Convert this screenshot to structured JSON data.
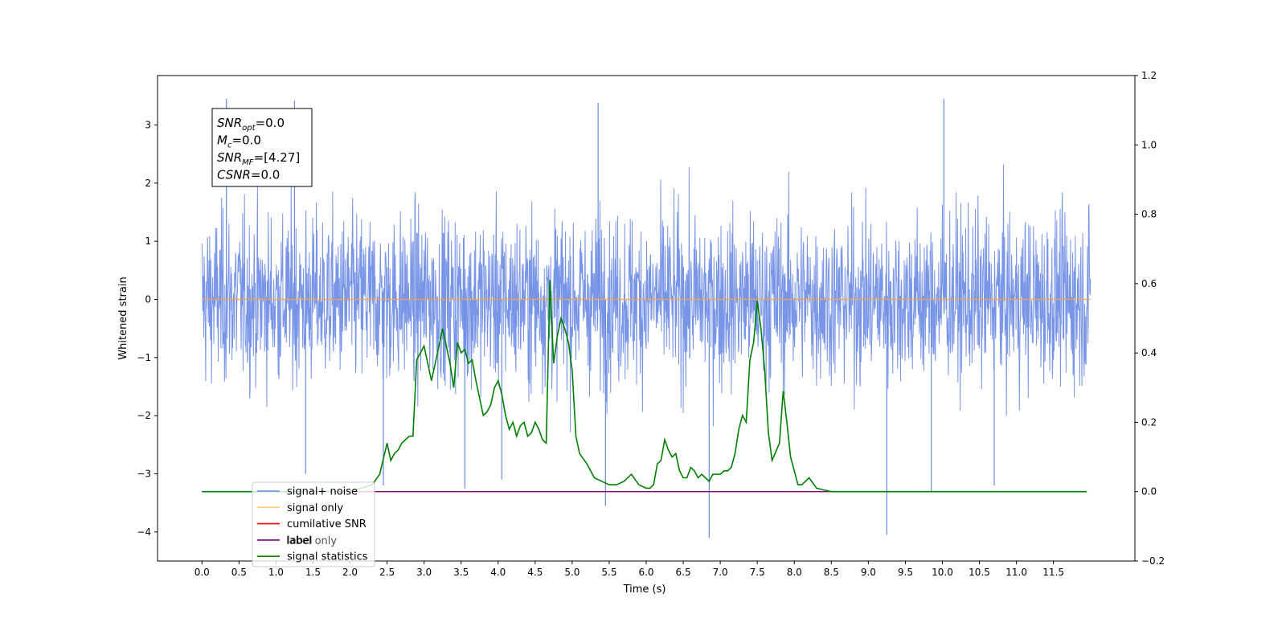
{
  "chart_data": {
    "type": "line",
    "xlabel": "Time (s)",
    "ylabel": "Whitened strain",
    "xlim": [
      -0.6,
      12.6
    ],
    "ylim": [
      -4.5,
      3.85
    ],
    "y2lim": [
      -0.2,
      1.2
    ],
    "x_ticks": [
      0.0,
      0.5,
      1.0,
      1.5,
      2.0,
      2.5,
      3.0,
      3.5,
      4.0,
      4.5,
      5.0,
      5.5,
      6.0,
      6.5,
      7.0,
      7.5,
      8.0,
      8.5,
      9.0,
      9.5,
      10.0,
      10.5,
      11.0,
      11.5
    ],
    "x_tick_labels": [
      "0.0",
      "0.5",
      "1.0",
      "1.5",
      "2.0",
      "2.5",
      "3.0",
      "3.5",
      "4.0",
      "4.5",
      "5.0",
      "5.5",
      "6.0",
      "6.5",
      "7.0",
      "7.5",
      "8.0",
      "8.5",
      "9.0",
      "9.5",
      "10.0",
      "10.5",
      "11.0",
      "11.5"
    ],
    "y_ticks": [
      -4,
      -3,
      -2,
      -1,
      0,
      1,
      2,
      3
    ],
    "y_tick_labels": [
      "−4",
      "−3",
      "−2",
      "−1",
      "0",
      "1",
      "2",
      "3"
    ],
    "y2_ticks": [
      -0.2,
      0.0,
      0.2,
      0.4,
      0.6,
      0.8,
      1.0,
      1.2
    ],
    "y2_tick_labels": [
      "−0.2",
      "0.0",
      "0.2",
      "0.4",
      "0.6",
      "0.8",
      "1.0",
      "1.2"
    ],
    "grid": false,
    "legend_placement": "lower-left",
    "noise": {
      "x_range": [
        0.0,
        12.0
      ],
      "typical_amplitude": 1.6,
      "max": 3.45,
      "min": -4.1,
      "spikes": [
        {
          "x": 0.33,
          "y": 3.45
        },
        {
          "x": 1.25,
          "y": 3.42
        },
        {
          "x": 10.02,
          "y": 3.45
        },
        {
          "x": 5.35,
          "y": 3.38
        },
        {
          "x": 1.4,
          "y": -3.0
        },
        {
          "x": 2.45,
          "y": -3.2
        },
        {
          "x": 3.55,
          "y": -3.25
        },
        {
          "x": 4.05,
          "y": -3.1
        },
        {
          "x": 5.45,
          "y": -3.55
        },
        {
          "x": 6.85,
          "y": -4.1
        },
        {
          "x": 9.25,
          "y": -4.05
        },
        {
          "x": 9.85,
          "y": -3.3
        },
        {
          "x": 10.7,
          "y": -3.2
        }
      ]
    },
    "series": [
      {
        "name": "signal+ noise",
        "color": "#6a8ae6",
        "axis": "left",
        "description_only": true
      },
      {
        "name": "signal only",
        "color": "#f5a742",
        "axis": "left",
        "x": [
          0.0,
          12.0
        ],
        "values": [
          0.0,
          0.0
        ]
      },
      {
        "name": "cumilative SNR",
        "color": "#ff0000",
        "axis": "right",
        "x": [],
        "values": []
      },
      {
        "name": "label",
        "color": "#800080",
        "axis": "right",
        "x": [
          0.0,
          11.95
        ],
        "values": [
          0.0,
          0.0
        ]
      },
      {
        "name": "signal statistics",
        "color": "#008000",
        "axis": "right",
        "x": [
          0.0,
          2.0,
          2.15,
          2.3,
          2.4,
          2.5,
          2.55,
          2.6,
          2.65,
          2.7,
          2.75,
          2.8,
          2.85,
          2.9,
          2.95,
          3.0,
          3.1,
          3.15,
          3.25,
          3.35,
          3.4,
          3.45,
          3.5,
          3.55,
          3.6,
          3.65,
          3.7,
          3.8,
          3.85,
          3.9,
          3.95,
          4.0,
          4.05,
          4.1,
          4.15,
          4.2,
          4.25,
          4.3,
          4.35,
          4.4,
          4.45,
          4.5,
          4.55,
          4.6,
          4.65,
          4.7,
          4.75,
          4.8,
          4.85,
          4.9,
          4.95,
          5.0,
          5.05,
          5.1,
          5.2,
          5.3,
          5.4,
          5.5,
          5.6,
          5.7,
          5.8,
          5.9,
          6.0,
          6.05,
          6.1,
          6.15,
          6.2,
          6.25,
          6.3,
          6.35,
          6.4,
          6.45,
          6.5,
          6.55,
          6.6,
          6.65,
          6.7,
          6.75,
          6.8,
          6.85,
          6.9,
          6.95,
          7.0,
          7.05,
          7.1,
          7.15,
          7.2,
          7.25,
          7.3,
          7.35,
          7.4,
          7.45,
          7.5,
          7.55,
          7.6,
          7.65,
          7.7,
          7.8,
          7.85,
          7.9,
          7.95,
          8.0,
          8.05,
          8.1,
          8.2,
          8.3,
          8.4,
          8.5,
          8.6,
          8.7,
          11.95
        ],
        "values": [
          0.0,
          0.0,
          0.01,
          0.02,
          0.05,
          0.14,
          0.09,
          0.11,
          0.12,
          0.14,
          0.15,
          0.16,
          0.16,
          0.38,
          0.4,
          0.42,
          0.32,
          0.37,
          0.47,
          0.37,
          0.3,
          0.43,
          0.4,
          0.41,
          0.37,
          0.38,
          0.32,
          0.22,
          0.23,
          0.25,
          0.3,
          0.32,
          0.28,
          0.22,
          0.18,
          0.2,
          0.16,
          0.19,
          0.2,
          0.16,
          0.17,
          0.2,
          0.18,
          0.15,
          0.14,
          0.61,
          0.37,
          0.45,
          0.5,
          0.47,
          0.43,
          0.35,
          0.16,
          0.11,
          0.08,
          0.04,
          0.03,
          0.02,
          0.02,
          0.03,
          0.05,
          0.02,
          0.01,
          0.01,
          0.02,
          0.08,
          0.09,
          0.15,
          0.12,
          0.1,
          0.11,
          0.06,
          0.04,
          0.04,
          0.07,
          0.06,
          0.04,
          0.05,
          0.04,
          0.03,
          0.05,
          0.05,
          0.05,
          0.06,
          0.06,
          0.07,
          0.11,
          0.18,
          0.22,
          0.2,
          0.38,
          0.43,
          0.55,
          0.47,
          0.35,
          0.17,
          0.09,
          0.14,
          0.29,
          0.2,
          0.1,
          0.06,
          0.02,
          0.02,
          0.04,
          0.01,
          0.005,
          0.0,
          0.0,
          0.0,
          0.0
        ]
      }
    ],
    "annotation_box": [
      {
        "base": "SNR",
        "sub": "opt",
        "text": "=0.0"
      },
      {
        "base": "M",
        "sub": "c",
        "text": "=0.0"
      },
      {
        "base": "SNR",
        "sub": "MF",
        "text": "=[4.27]"
      },
      {
        "base": "CSNR",
        "sub": "",
        "text": "=0.0"
      }
    ],
    "legend": [
      {
        "label": "signal+ noise",
        "color": "#6a8ae6"
      },
      {
        "label": "signal only",
        "color": "#ffc966"
      },
      {
        "label": "cumilative SNR",
        "color": "#ff0000"
      },
      {
        "label": "label",
        "color": "#800080"
      },
      {
        "label": "signal statistics",
        "color": "#008000"
      }
    ],
    "ghost_legend_texts": [
      "label only"
    ]
  }
}
